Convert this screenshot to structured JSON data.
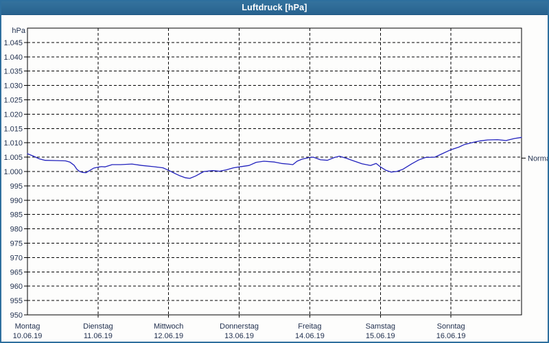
{
  "window": {
    "title": "Luftdruck [hPa]",
    "titlebar_color": "#2e6f9e",
    "border_color": "#2e6f9e",
    "background": "#fdfdfc"
  },
  "chart_data": {
    "type": "line",
    "title": "Luftdruck [hPa]",
    "unit_label": "hPa",
    "ylim": [
      950,
      1050
    ],
    "ytick_step": 5,
    "ytick_labels": [
      "1.045",
      "1.040",
      "1.035",
      "1.030",
      "1.025",
      "1.020",
      "1.015",
      "1.010",
      "1.005",
      "1.000",
      "995",
      "990",
      "985",
      "980",
      "975",
      "970",
      "965",
      "960",
      "955",
      "950"
    ],
    "grid": "dashed",
    "legend_position": "none",
    "line_color": "#2121bd",
    "text_color": "#1f2e4d",
    "axis_color": "#000000",
    "categories": [
      {
        "day": "Montag",
        "date": "10.06.19"
      },
      {
        "day": "Dienstag",
        "date": "11.06.19"
      },
      {
        "day": "Mittwoch",
        "date": "12.06.19"
      },
      {
        "day": "Donnerstag",
        "date": "13.06.19"
      },
      {
        "day": "Freitag",
        "date": "14.06.19"
      },
      {
        "day": "Samstag",
        "date": "15.06.19"
      },
      {
        "day": "Sonntag",
        "date": "16.06.19"
      }
    ],
    "x_range_days": [
      0,
      7
    ],
    "normal_marker": {
      "label": "Normal",
      "value": 1004.7
    },
    "series": [
      {
        "name": "Luftdruck",
        "points": [
          [
            0.0,
            1006.2
          ],
          [
            0.08,
            1005.4
          ],
          [
            0.17,
            1004.4
          ],
          [
            0.25,
            1003.9
          ],
          [
            0.42,
            1003.8
          ],
          [
            0.54,
            1003.7
          ],
          [
            0.6,
            1003.3
          ],
          [
            0.66,
            1002.2
          ],
          [
            0.7,
            1000.8
          ],
          [
            0.74,
            1000.0
          ],
          [
            0.78,
            999.7
          ],
          [
            0.83,
            999.6
          ],
          [
            0.88,
            1000.3
          ],
          [
            0.94,
            1001.2
          ],
          [
            1.0,
            1001.5
          ],
          [
            1.05,
            1001.7
          ],
          [
            1.1,
            1001.6
          ],
          [
            1.2,
            1002.4
          ],
          [
            1.32,
            1002.4
          ],
          [
            1.48,
            1002.6
          ],
          [
            1.62,
            1002.1
          ],
          [
            1.78,
            1001.7
          ],
          [
            1.92,
            1001.3
          ],
          [
            2.0,
            1000.4
          ],
          [
            2.09,
            999.3
          ],
          [
            2.16,
            998.5
          ],
          [
            2.24,
            997.8
          ],
          [
            2.3,
            997.6
          ],
          [
            2.38,
            998.4
          ],
          [
            2.5,
            1000.0
          ],
          [
            2.63,
            1000.3
          ],
          [
            2.72,
            1000.1
          ],
          [
            2.82,
            1000.6
          ],
          [
            2.92,
            1001.3
          ],
          [
            3.0,
            1001.6
          ],
          [
            3.14,
            1002.1
          ],
          [
            3.24,
            1003.2
          ],
          [
            3.35,
            1003.6
          ],
          [
            3.5,
            1003.3
          ],
          [
            3.6,
            1002.8
          ],
          [
            3.69,
            1002.6
          ],
          [
            3.76,
            1002.4
          ],
          [
            3.82,
            1003.6
          ],
          [
            3.89,
            1004.3
          ],
          [
            4.0,
            1004.9
          ],
          [
            4.05,
            1005.0
          ],
          [
            4.15,
            1004.1
          ],
          [
            4.25,
            1003.9
          ],
          [
            4.35,
            1004.9
          ],
          [
            4.42,
            1005.3
          ],
          [
            4.52,
            1004.6
          ],
          [
            4.6,
            1003.9
          ],
          [
            4.74,
            1002.7
          ],
          [
            4.86,
            1002.1
          ],
          [
            4.94,
            1002.8
          ],
          [
            5.0,
            1001.6
          ],
          [
            5.08,
            1000.4
          ],
          [
            5.15,
            999.8
          ],
          [
            5.23,
            1000.0
          ],
          [
            5.32,
            1000.8
          ],
          [
            5.44,
            1002.6
          ],
          [
            5.54,
            1004.0
          ],
          [
            5.64,
            1004.9
          ],
          [
            5.77,
            1005.0
          ],
          [
            5.86,
            1006.0
          ],
          [
            6.0,
            1007.6
          ],
          [
            6.11,
            1008.5
          ],
          [
            6.19,
            1009.4
          ],
          [
            6.32,
            1010.2
          ],
          [
            6.42,
            1010.7
          ],
          [
            6.52,
            1011.0
          ],
          [
            6.66,
            1011.1
          ],
          [
            6.78,
            1010.8
          ],
          [
            6.9,
            1011.5
          ],
          [
            7.0,
            1011.9
          ]
        ]
      }
    ]
  }
}
